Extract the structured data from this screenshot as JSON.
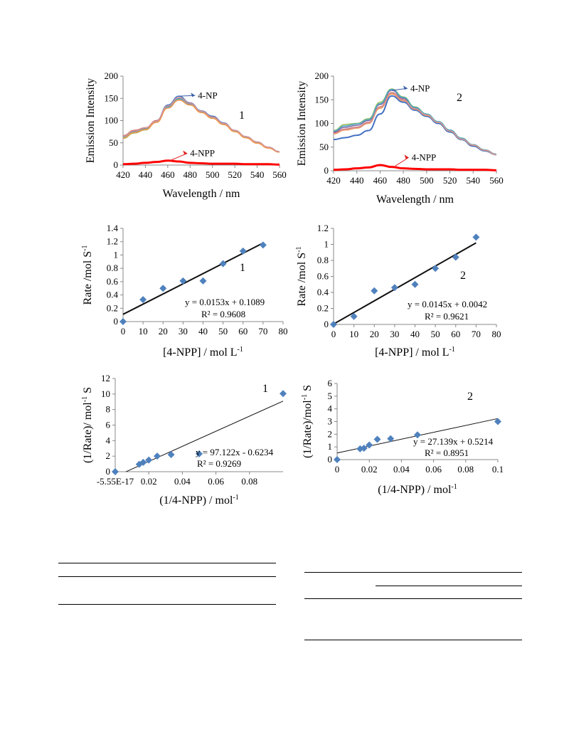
{
  "charts": [
    {
      "id": "emission-1",
      "chart_data": {
        "type": "line",
        "panel_label": "1",
        "xlabel": "Wavelength / nm",
        "ylabel": "Emission Intensity",
        "xlim": [
          420,
          560
        ],
        "ylim": [
          0,
          200
        ],
        "xticks": [
          420,
          440,
          460,
          480,
          500,
          520,
          540,
          560
        ],
        "yticks": [
          0,
          50,
          100,
          150,
          200
        ],
        "x": [
          420,
          430,
          440,
          450,
          460,
          470,
          480,
          490,
          500,
          510,
          520,
          530,
          540,
          550,
          560
        ],
        "series": [
          {
            "color": "#4472c4",
            "values": [
              62,
              75,
              82,
              100,
              135,
              155,
              140,
              122,
              110,
              95,
              78,
              64,
              52,
              40,
              30
            ]
          },
          {
            "color": "#c0504d",
            "values": [
              66,
              78,
              84,
              100,
              132,
              150,
              138,
              120,
              108,
              93,
              77,
              63,
              51,
              40,
              30
            ]
          },
          {
            "color": "#9bbb59",
            "values": [
              60,
              72,
              79,
              97,
              130,
              148,
              136,
              119,
              106,
              92,
              76,
              62,
              50,
              39,
              29
            ]
          },
          {
            "color": "#8064a2",
            "values": [
              64,
              76,
              83,
              99,
              131,
              151,
              137,
              120,
              107,
              93,
              77,
              63,
              51,
              40,
              30
            ]
          },
          {
            "color": "#4bacc6",
            "values": [
              63,
              74,
              81,
              98,
              130,
              149,
              136,
              119,
              107,
              92,
              76,
              62,
              50,
              39,
              29
            ]
          },
          {
            "color": "#f79646",
            "values": [
              61,
              73,
              80,
              96,
              128,
              146,
              135,
              118,
              105,
              91,
              75,
              61,
              49,
              38,
              29
            ]
          },
          {
            "color": "#d99694",
            "values": [
              65,
              77,
              84,
              99,
              133,
              152,
              139,
              121,
              108,
              94,
              78,
              64,
              52,
              40,
              30
            ]
          },
          {
            "color": "#ff0000",
            "width": 3,
            "values": [
              2,
              3,
              5,
              7,
              10,
              8,
              5,
              4,
              3,
              3,
              3,
              2,
              2,
              2,
              1
            ]
          }
        ],
        "annotations": [
          {
            "text": "4-NP",
            "x": 470,
            "y": 155,
            "tx": 487,
            "ty": 150
          },
          {
            "text": "4-NPP",
            "x": 462,
            "y": 10,
            "tx": 480,
            "ty": 20
          }
        ]
      }
    },
    {
      "id": "emission-2",
      "chart_data": {
        "type": "line",
        "panel_label": "2",
        "xlabel": "Wavelength / nm",
        "ylabel": "Emission Intensity",
        "xlim": [
          420,
          560
        ],
        "ylim": [
          0,
          200
        ],
        "xticks": [
          420,
          440,
          460,
          480,
          500,
          520,
          540,
          560
        ],
        "yticks": [
          0,
          50,
          100,
          150,
          200
        ],
        "x": [
          420,
          430,
          440,
          450,
          460,
          470,
          480,
          490,
          500,
          510,
          520,
          530,
          540,
          550,
          560
        ],
        "series": [
          {
            "color": "#4472c4",
            "width": 2,
            "values": [
              66,
              70,
              75,
              85,
              120,
              158,
              145,
              128,
              115,
              100,
              82,
              66,
              52,
              42,
              34
            ]
          },
          {
            "color": "#c0504d",
            "values": [
              80,
              88,
              92,
              102,
              135,
              165,
              150,
              132,
              118,
              103,
              85,
              68,
              55,
              44,
              35
            ]
          },
          {
            "color": "#9bbb59",
            "values": [
              85,
              98,
              100,
              110,
              145,
              173,
              156,
              135,
              120,
              104,
              86,
              69,
              55,
              44,
              35
            ]
          },
          {
            "color": "#8064a2",
            "values": [
              82,
              92,
              96,
              106,
              140,
              170,
              153,
              133,
              119,
              103,
              85,
              68,
              54,
              44,
              35
            ]
          },
          {
            "color": "#4bacc6",
            "values": [
              84,
              95,
              99,
              108,
              142,
              172,
              155,
              134,
              120,
              104,
              86,
              69,
              55,
              44,
              35
            ]
          },
          {
            "color": "#f79646",
            "values": [
              78,
              86,
              90,
              100,
              132,
              162,
              148,
              130,
              117,
              102,
              84,
              67,
              54,
              43,
              34
            ]
          },
          {
            "color": "#d99694",
            "values": [
              79,
              87,
              91,
              101,
              134,
              164,
              149,
              131,
              118,
              102,
              84,
              67,
              54,
              43,
              34
            ]
          },
          {
            "color": "#ff0000",
            "width": 3,
            "values": [
              2,
              3,
              5,
              7,
              12,
              8,
              5,
              4,
              3,
              3,
              3,
              2,
              2,
              2,
              1
            ]
          }
        ],
        "annotations": [
          {
            "text": "4-NP",
            "x": 470,
            "y": 170,
            "tx": 486,
            "ty": 168
          },
          {
            "text": "4-NPP",
            "x": 473,
            "y": 10,
            "tx": 487,
            "ty": 22
          }
        ]
      }
    },
    {
      "id": "rate-1",
      "chart_data": {
        "type": "scatter",
        "panel_label": "1",
        "xlabel": "[4-NPP] / mol L",
        "xlabel_sup": "-1",
        "ylabel": "Rate /mol S",
        "ylabel_sup": "-1",
        "xlim": [
          0,
          80
        ],
        "ylim": [
          0,
          1.4
        ],
        "xticks": [
          0,
          10,
          20,
          30,
          40,
          50,
          60,
          70,
          80
        ],
        "yticks": [
          0,
          0.2,
          0.4,
          0.6,
          0.8,
          1,
          1.2,
          1.4
        ],
        "points": [
          [
            0,
            0
          ],
          [
            10,
            0.33
          ],
          [
            20,
            0.5
          ],
          [
            30,
            0.61
          ],
          [
            40,
            0.61
          ],
          [
            50,
            0.87
          ],
          [
            60,
            1.06
          ],
          [
            70,
            1.15
          ]
        ],
        "trendline": {
          "slope": 0.0153,
          "intercept": 0.1089,
          "x0": 0,
          "x1": 70
        },
        "equation": "y = 0.0153x + 0.1089",
        "r2": "R² = 0.9608"
      }
    },
    {
      "id": "rate-2",
      "chart_data": {
        "type": "scatter",
        "panel_label": "2",
        "xlabel": "[4-NPP] / mol L",
        "xlabel_sup": "-1",
        "ylabel": "Rate /mol S",
        "ylabel_sup": "-1",
        "xlim": [
          0,
          80
        ],
        "ylim": [
          0,
          1.2
        ],
        "xticks": [
          0,
          10,
          20,
          30,
          40,
          50,
          60,
          70,
          80
        ],
        "yticks": [
          0,
          0.2,
          0.4,
          0.6,
          0.8,
          1,
          1.2
        ],
        "points": [
          [
            0,
            0
          ],
          [
            10,
            0.1
          ],
          [
            20,
            0.42
          ],
          [
            30,
            0.46
          ],
          [
            40,
            0.5
          ],
          [
            50,
            0.7
          ],
          [
            60,
            0.84
          ],
          [
            70,
            1.09
          ]
        ],
        "trendline": {
          "slope": 0.0145,
          "intercept": 0.0042,
          "x0": 0,
          "x1": 70
        },
        "equation": "y = 0.0145x + 0.0042",
        "r2": "R² = 0.9621"
      }
    },
    {
      "id": "lineweaver-1",
      "chart_data": {
        "type": "scatter",
        "panel_label": "1",
        "xlabel": "(1/4-NPP) / mol",
        "xlabel_sup": "-1",
        "ylabel": "(1/Rate)/ mol",
        "ylabel_sup": "-1",
        "ylabel_tail": " S",
        "xlim": [
          0,
          0.1
        ],
        "ylim": [
          0,
          12
        ],
        "xticks": [
          0,
          0.02,
          0.04,
          0.06,
          0.08
        ],
        "xtick_labels": [
          "-5.55E-17",
          "0.02",
          "0.04",
          "0.06",
          "0.08"
        ],
        "yticks": [
          0,
          2,
          4,
          6,
          8,
          10,
          12
        ],
        "points": [
          [
            0,
            0
          ],
          [
            0.0143,
            0.95
          ],
          [
            0.0167,
            1.2
          ],
          [
            0.02,
            1.5
          ],
          [
            0.025,
            2.0
          ],
          [
            0.0333,
            2.2
          ],
          [
            0.05,
            2.3
          ],
          [
            0.1,
            10.05
          ]
        ],
        "trendline": {
          "slope": 97.122,
          "intercept": -0.6234,
          "x0": 0.0064,
          "x1": 0.1
        },
        "equation": "y = 97.122x - 0.6234",
        "r2": "R² = 0.9269"
      }
    },
    {
      "id": "lineweaver-2",
      "chart_data": {
        "type": "scatter",
        "panel_label": "2",
        "xlabel": "(1/4-NPP) / mol",
        "xlabel_sup": "-1",
        "ylabel": "(1/Rate)/mol",
        "ylabel_sup": "-1",
        "ylabel_tail": " S",
        "xlim": [
          0,
          0.1
        ],
        "ylim": [
          0,
          6
        ],
        "xticks": [
          0,
          0.02,
          0.04,
          0.06,
          0.08,
          0.1
        ],
        "xtick_labels": [
          "0",
          "0.02",
          "0.04",
          "0.06",
          "0.08",
          "0.1"
        ],
        "yticks": [
          0,
          1,
          2,
          3,
          4,
          5,
          6
        ],
        "points": [
          [
            0,
            0
          ],
          [
            0.0143,
            0.85
          ],
          [
            0.0167,
            0.9
          ],
          [
            0.02,
            1.15
          ],
          [
            0.025,
            1.6
          ],
          [
            0.0333,
            1.65
          ],
          [
            0.05,
            1.95
          ],
          [
            0.1,
            3.0
          ]
        ],
        "trendline": {
          "slope": 27.139,
          "intercept": 0.5214,
          "x0": 0,
          "x1": 0.1
        },
        "equation": "y = 27.139x + 0.5214",
        "r2": "R² = 0.8951"
      }
    }
  ]
}
